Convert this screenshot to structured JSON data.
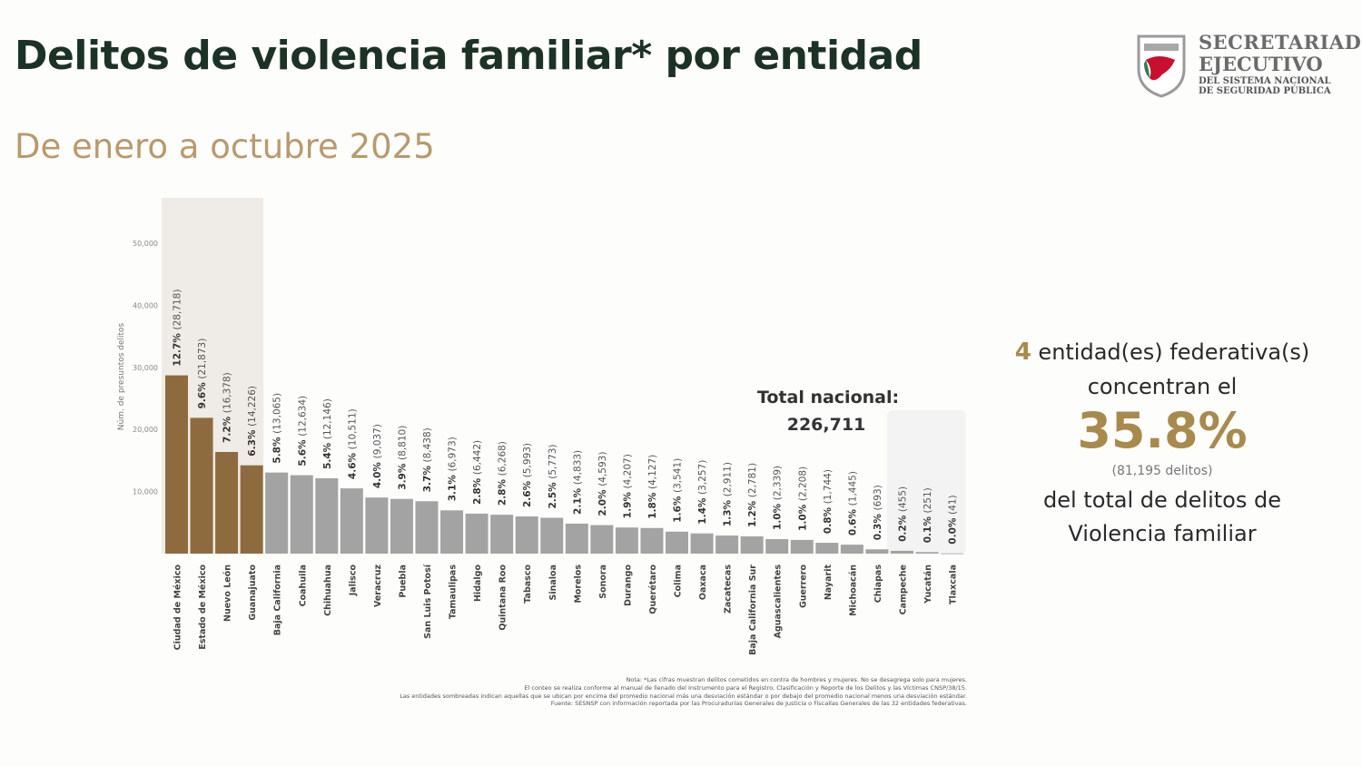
{
  "header": {
    "title": "Delitos de violencia familiar* por entidad",
    "subtitle": "De enero a octubre 2025"
  },
  "logo": {
    "line1": "SECRETARIADO",
    "line2": "EJECUTIVO",
    "line3": "DEL SISTEMA NACIONAL",
    "line4": "DE SEGURIDAD PÚBLICA"
  },
  "total": {
    "label": "Total nacional:",
    "value": "226,711"
  },
  "summary": {
    "count": "4",
    "line1": "entidad(es)  federativa(s)",
    "line2": "concentran el",
    "percent": "35.8%",
    "delitos": "(81,195  delitos)",
    "line3": "del  total  de delitos  de",
    "line4": "Violencia  familiar"
  },
  "notes": [
    "Nota: *Las cifras muestran delitos cometidos en contra de hombres y mujeres. No se desagrega solo para mujeres.",
    "El conteo se realiza conforme al manual de llenado del Instrumento para el Registro, Clasificación y Reporte de los Delitos y las Víctimas CNSP/38/15.",
    "Las entidades sombreadas indican aquellas que se ubican por encima del promedio nacional más una desviación estándar o por debajo del promedio nacional menos una desviación estándar.",
    "Fuente: SESNSP con información reportada por las Procuradurías Generales de Justicia o Fiscalías Generales de las 32 entidades federativas."
  ],
  "chart_data": {
    "type": "bar",
    "title": "",
    "ylabel": "Núm. de presuntos delitos",
    "ylim": [
      0,
      50000
    ],
    "yticks": [
      "10,000",
      "20,000",
      "30,000",
      "40,000",
      "50,000"
    ],
    "ytick_values": [
      10000,
      20000,
      30000,
      40000,
      50000
    ],
    "colors": {
      "highlight": "#8e6b3e",
      "normal": "#a3a3a3",
      "shade_high": "#efebe6",
      "shade_low": "#f3f3f3"
    },
    "categories": [
      "Ciudad de México",
      "Estado de México",
      "Nuevo León",
      "Guanajuato",
      "Baja California",
      "Coahuila",
      "Chihuahua",
      "Jalisco",
      "Veracruz",
      "Puebla",
      "San Luis Potosí",
      "Tamaulipas",
      "Hidalgo",
      "Quintana Roo",
      "Tabasco",
      "Sinaloa",
      "Morelos",
      "Sonora",
      "Durango",
      "Querétaro",
      "Colima",
      "Oaxaca",
      "Zacatecas",
      "Baja California Sur",
      "Aguascalientes",
      "Guerrero",
      "Nayarit",
      "Michoacán",
      "Chiapas",
      "Campeche",
      "Yucatán",
      "Tlaxcala"
    ],
    "values": [
      28718,
      21873,
      16378,
      14226,
      13065,
      12634,
      12146,
      10511,
      9037,
      8810,
      8438,
      6973,
      6442,
      6268,
      5993,
      5773,
      4833,
      4593,
      4207,
      4127,
      3541,
      3257,
      2911,
      2781,
      2339,
      2208,
      1744,
      1445,
      693,
      455,
      251,
      41
    ],
    "percents": [
      "12.7%",
      "9.6%",
      "7.2%",
      "6.3%",
      "5.8%",
      "5.6%",
      "5.4%",
      "4.6%",
      "4.0%",
      "3.9%",
      "3.7%",
      "3.1%",
      "2.8%",
      "2.8%",
      "2.6%",
      "2.5%",
      "2.1%",
      "2.0%",
      "1.9%",
      "1.8%",
      "1.6%",
      "1.4%",
      "1.3%",
      "1.2%",
      "1.0%",
      "1.0%",
      "0.8%",
      "0.6%",
      "0.3%",
      "0.2%",
      "0.1%",
      "0.0%"
    ],
    "labels": [
      "(28,718)",
      "(21,873)",
      "(16,378)",
      "(14,226)",
      "(13,065)",
      "(12,634)",
      "(12,146)",
      "(10,511)",
      "(9,037)",
      "(8,810)",
      "(8,438)",
      "(6,973)",
      "(6,442)",
      "(6,268)",
      "(5,993)",
      "(5,773)",
      "(4,833)",
      "(4,593)",
      "(4,207)",
      "(4,127)",
      "(3,541)",
      "(3,257)",
      "(2,911)",
      "(2,781)",
      "(2,339)",
      "(2,208)",
      "(1,744)",
      "(1,445)",
      "(693)",
      "(455)",
      "(251)",
      "(41)"
    ],
    "highlighted_high": [
      "Ciudad de México",
      "Estado de México",
      "Nuevo León",
      "Guanajuato"
    ],
    "highlighted_low": [
      "Campeche",
      "Yucatán",
      "Tlaxcala"
    ]
  }
}
